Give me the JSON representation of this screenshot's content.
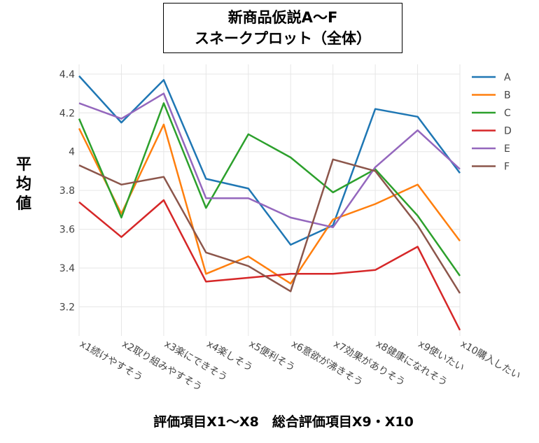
{
  "title_line1": "新商品仮説A〜F",
  "title_line2": "スネークプロット（全体）",
  "ylabel": "平均値",
  "xlabel": "評価項目X1〜X8　総合評価項目X9・X10",
  "chart_data": {
    "type": "line",
    "categories": [
      "x1続けやすそう",
      "x2取り組みやすそう",
      "x3楽にできそう",
      "x4楽しそう",
      "x5便利そう",
      "x6意欲が沸きそう",
      "x7効果がありそう",
      "x8健康になれそう",
      "x9使いたい",
      "x10購入したい"
    ],
    "ylim": [
      3.05,
      4.45
    ],
    "yticks": [
      "3.2",
      "3.4",
      "3.6",
      "3.8",
      "4",
      "4.2",
      "4.4"
    ],
    "grid": true,
    "legend_position": "top-right",
    "series": [
      {
        "name": "A",
        "color": "#1f77b4",
        "values": [
          4.39,
          4.15,
          4.37,
          3.86,
          3.81,
          3.52,
          3.62,
          4.22,
          4.18,
          3.89
        ]
      },
      {
        "name": "B",
        "color": "#ff7f0e",
        "values": [
          4.12,
          3.68,
          4.14,
          3.37,
          3.46,
          3.32,
          3.65,
          3.73,
          3.83,
          3.54
        ]
      },
      {
        "name": "C",
        "color": "#2ca02c",
        "values": [
          4.17,
          3.66,
          4.25,
          3.71,
          4.09,
          3.97,
          3.79,
          3.91,
          3.67,
          3.36
        ]
      },
      {
        "name": "D",
        "color": "#d62728",
        "values": [
          3.74,
          3.56,
          3.75,
          3.33,
          3.35,
          3.37,
          3.37,
          3.39,
          3.51,
          3.08
        ]
      },
      {
        "name": "E",
        "color": "#9467bd",
        "values": [
          4.25,
          4.17,
          4.3,
          3.76,
          3.76,
          3.66,
          3.61,
          3.92,
          4.11,
          3.91
        ]
      },
      {
        "name": "F",
        "color": "#8c564b",
        "values": [
          3.93,
          3.83,
          3.87,
          3.48,
          3.41,
          3.28,
          3.96,
          3.9,
          3.62,
          3.27
        ]
      }
    ]
  }
}
